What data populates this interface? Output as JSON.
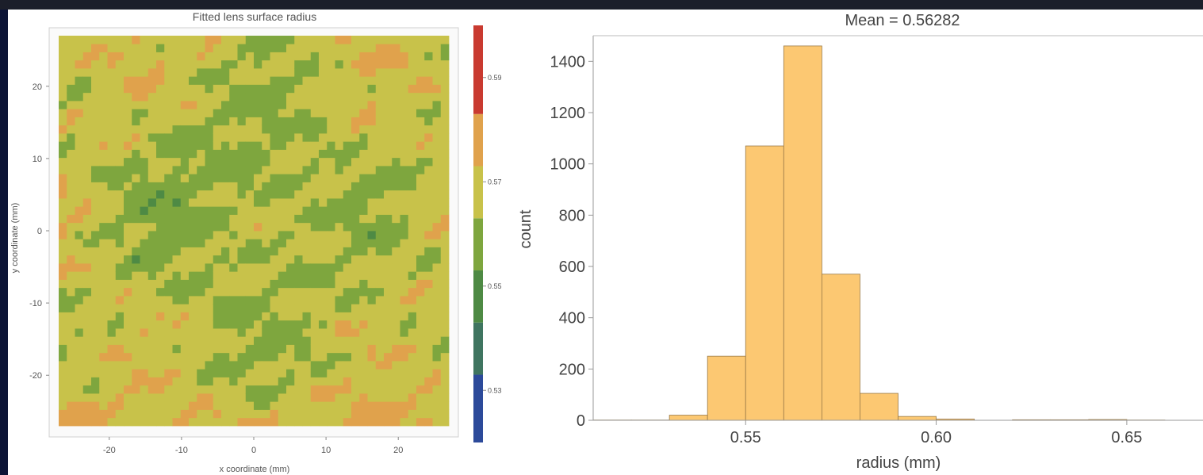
{
  "chart_data": [
    {
      "type": "heatmap",
      "title": "Fitted lens surface radius",
      "xlabel": "x coordinate (mm)",
      "ylabel": "y coordinate (mm)",
      "xlim": [
        -27,
        27
      ],
      "ylim": [
        -27,
        27
      ],
      "x_ticks": [
        "-20",
        "-10",
        "0",
        "10",
        "20"
      ],
      "x_tick_values": [
        -20,
        -10,
        0,
        10,
        20
      ],
      "y_ticks": [
        "20",
        "10",
        "0",
        "-10",
        "-20"
      ],
      "y_tick_values": [
        20,
        10,
        0,
        -10,
        -20
      ],
      "colorbar": {
        "range": [
          0.52,
          0.6
        ],
        "bands": [
          {
            "from": 0.52,
            "to": 0.533,
            "color": "#2c4a9a"
          },
          {
            "from": 0.533,
            "to": 0.543,
            "color": "#3f7560"
          },
          {
            "from": 0.543,
            "to": 0.553,
            "color": "#4e8a44"
          },
          {
            "from": 0.553,
            "to": 0.563,
            "color": "#7ea63e"
          },
          {
            "from": 0.563,
            "to": 0.573,
            "color": "#c8c24a"
          },
          {
            "from": 0.573,
            "to": 0.583,
            "color": "#e0a24c"
          },
          {
            "from": 0.583,
            "to": 0.6,
            "color": "#c93a30"
          }
        ],
        "tick_labels": [
          "0.59",
          "0.57",
          "0.55",
          "0.53"
        ],
        "tick_values": [
          0.59,
          0.57,
          0.55,
          0.53
        ]
      },
      "grid": false
    },
    {
      "type": "bar",
      "title": "Mean = 0.56282",
      "xlabel": "radius (mm)",
      "ylabel": "count",
      "bin_edges": [
        0.51,
        0.52,
        0.53,
        0.54,
        0.55,
        0.56,
        0.57,
        0.58,
        0.59,
        0.6,
        0.61,
        0.62,
        0.63,
        0.64,
        0.65,
        0.66
      ],
      "values": [
        1,
        1,
        20,
        250,
        1070,
        1460,
        570,
        105,
        15,
        5,
        0,
        2,
        2,
        3,
        1
      ],
      "xlim": [
        0.51,
        0.67
      ],
      "ylim": [
        0,
        1500
      ],
      "x_ticks": [
        "0.55",
        "0.60",
        "0.65"
      ],
      "x_tick_values": [
        0.55,
        0.6,
        0.65
      ],
      "y_ticks": [
        "0",
        "200",
        "400",
        "600",
        "800",
        "1000",
        "1200",
        "1400"
      ],
      "y_tick_values": [
        0,
        200,
        400,
        600,
        800,
        1000,
        1200,
        1400
      ],
      "bar_color": "#fcc872",
      "grid": false
    }
  ]
}
